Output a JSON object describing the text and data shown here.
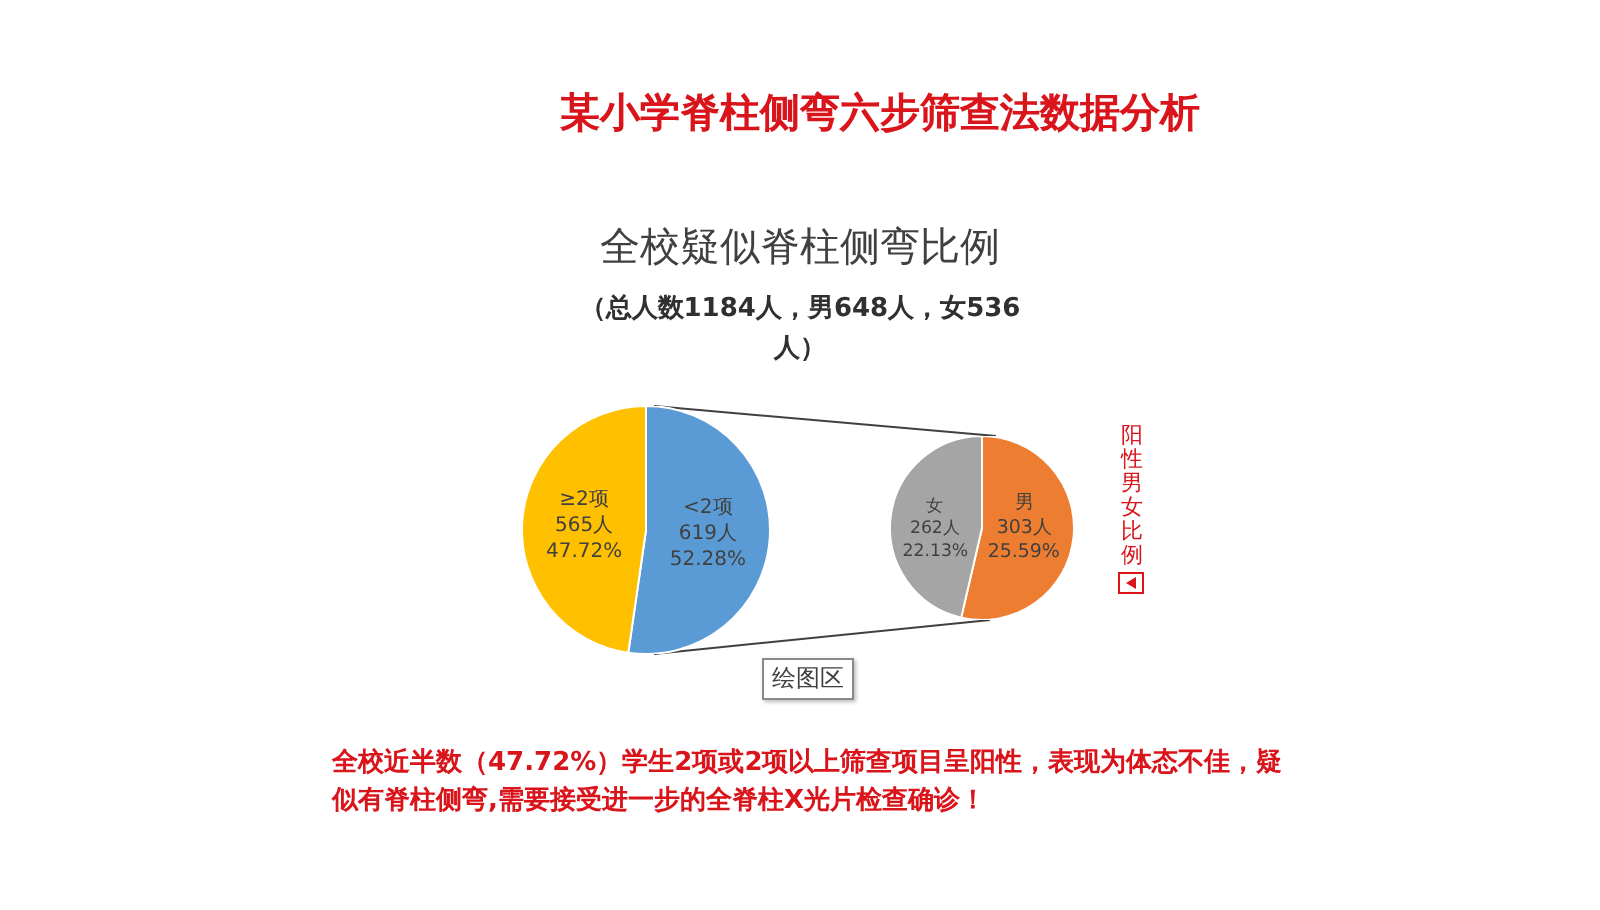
{
  "chart_data": [
    {
      "type": "pie",
      "title": "全校疑似脊柱侧弯比例",
      "subtitle": "（总人数1184人，男648人，女536人）",
      "categories": [
        "<2项",
        "≥2项"
      ],
      "values": [
        619,
        565
      ],
      "colors": [
        "#5b9bd5",
        "#ffc000"
      ],
      "value_labels": [
        "619人\n52.28%",
        "565人\n47.72%"
      ],
      "annotations": [
        "某小学脊柱侧弯六步筛查法数据分析",
        "绘图区",
        "全校近半数（47.72%）学生2项或2项以上筛查项目呈阳性，表现为体态不佳，疑似有脊柱侧弯,需要接受进一步的全脊柱X光片检查确诊！"
      ]
    },
    {
      "type": "pie",
      "title": "阳性男女比例",
      "categories": [
        "男",
        "女"
      ],
      "values": [
        303,
        262
      ],
      "colors": [
        "#ed7d31",
        "#a5a5a5"
      ],
      "value_labels": [
        "303人\n25.59%",
        "262人\n22.13%"
      ]
    }
  ]
}
